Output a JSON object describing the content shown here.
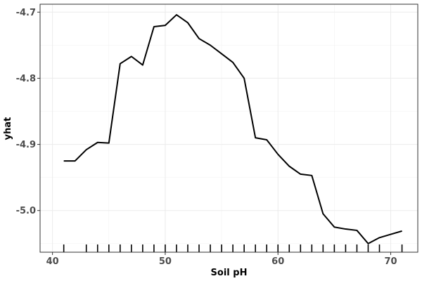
{
  "chart_data": {
    "type": "line",
    "title": "",
    "xlabel": "Soil pH",
    "ylabel": "yhat",
    "xlim": [
      38.9,
      72.4
    ],
    "ylim": [
      -5.063,
      -4.688
    ],
    "x_ticks": [
      40,
      50,
      60,
      70
    ],
    "x_tick_labels": [
      "40",
      "50",
      "60",
      "70"
    ],
    "y_ticks": [
      -4.7,
      -4.8,
      -4.9,
      -5.0
    ],
    "y_tick_labels": [
      "-4.7",
      "-4.8",
      "-4.9",
      "-5.0"
    ],
    "grid": true,
    "legend": "none",
    "series": [
      {
        "x": [
          41,
          42,
          43,
          44,
          45,
          46,
          47,
          48,
          49,
          50,
          51,
          52,
          53,
          54,
          55,
          56,
          57,
          58,
          59,
          60,
          61,
          62,
          63,
          64,
          65,
          66,
          67,
          68,
          69,
          70,
          71
        ],
        "values": [
          -4.925,
          -4.925,
          -4.908,
          -4.897,
          -4.898,
          -4.778,
          -4.767,
          -4.78,
          -4.722,
          -4.72,
          -4.704,
          -4.716,
          -4.74,
          -4.75,
          -4.763,
          -4.776,
          -4.8,
          -4.89,
          -4.893,
          -4.915,
          -4.933,
          -4.945,
          -4.947,
          -5.005,
          -5.025,
          -5.028,
          -5.03,
          -5.05,
          -5.041,
          -5.036,
          -5.031
        ],
        "color": "#000000"
      }
    ],
    "rug_x": [
      41,
      43,
      44,
      45,
      46,
      47,
      48,
      49,
      50,
      51,
      52,
      53,
      54,
      55,
      56,
      57,
      58,
      59,
      60,
      61,
      62,
      63,
      64,
      65,
      66,
      67,
      68,
      69,
      71
    ]
  }
}
